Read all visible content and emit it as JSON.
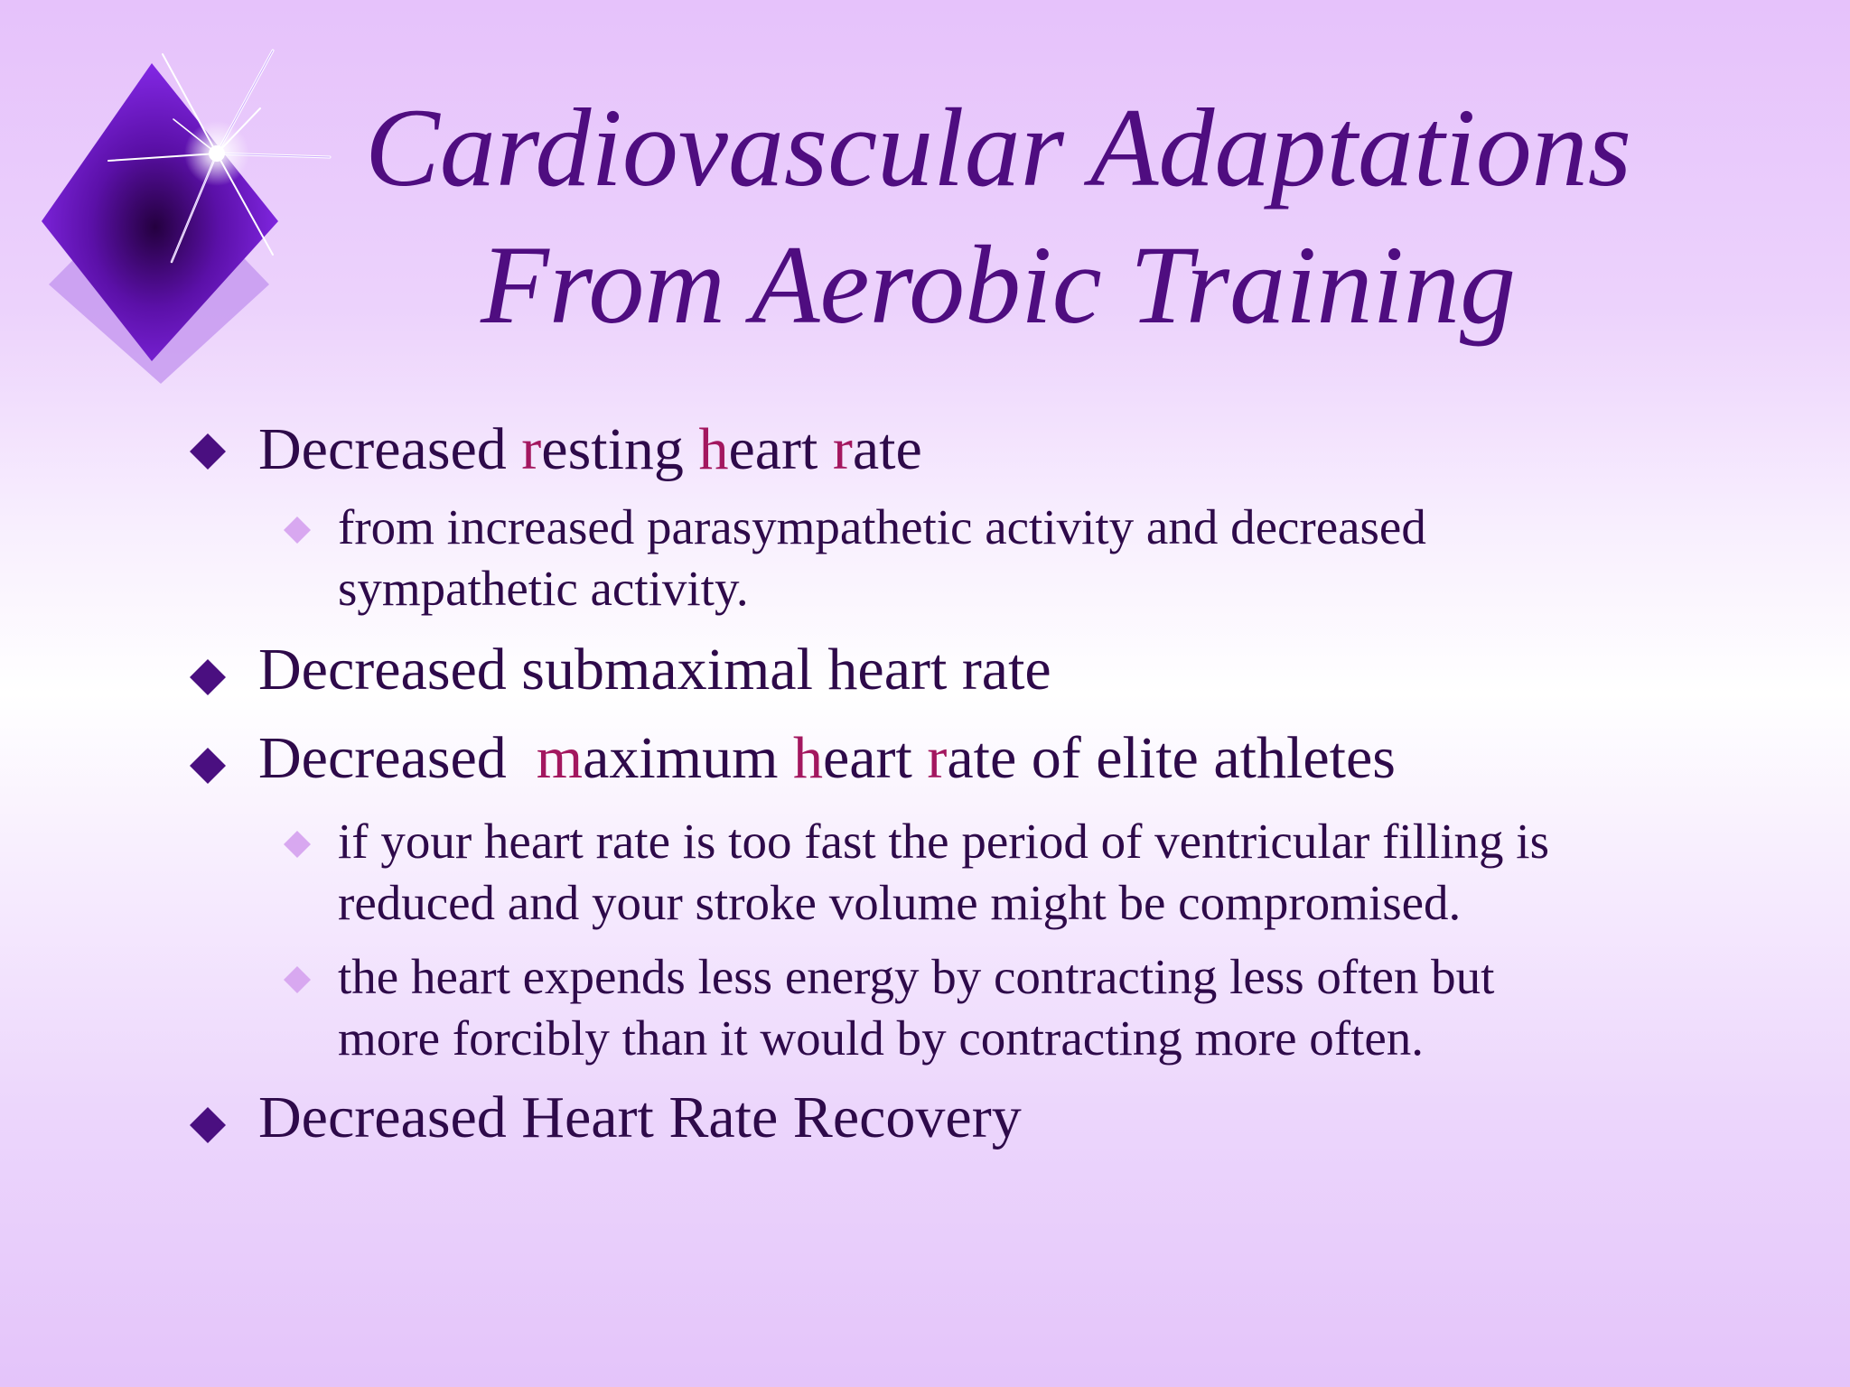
{
  "slide": {
    "title_lines": [
      "Cardiovascular Adaptations",
      "From Aerobic Training"
    ],
    "colors": {
      "title": "#4f0d80",
      "body_text": "#2e0a4a",
      "highlight": "#a3175f",
      "level1_bullet": "#4a0f80",
      "level2_bullet": "#d8a8f0"
    },
    "bullets": {
      "b1": {
        "parts": [
          "Decreased ",
          "r",
          "esting ",
          "h",
          "eart ",
          "r",
          "ate"
        ],
        "sub1": [
          "from increased parasympathetic activity and decreased",
          "sympathetic activity."
        ]
      },
      "b2": "Decreased submaximal heart rate",
      "b3": {
        "parts": [
          "Decreased  ",
          "m",
          "aximum ",
          "h",
          "eart ",
          "r",
          "ate of elite athletes"
        ],
        "sub1": [
          "if your heart rate is too fast the period of ventricular filling is",
          "reduced and your stroke volume might be compromised."
        ],
        "sub2": [
          "the heart expends less energy by contracting less often but",
          "more forcibly than it would by contracting more often."
        ]
      },
      "b4": "Decreased Heart Rate Recovery"
    }
  }
}
